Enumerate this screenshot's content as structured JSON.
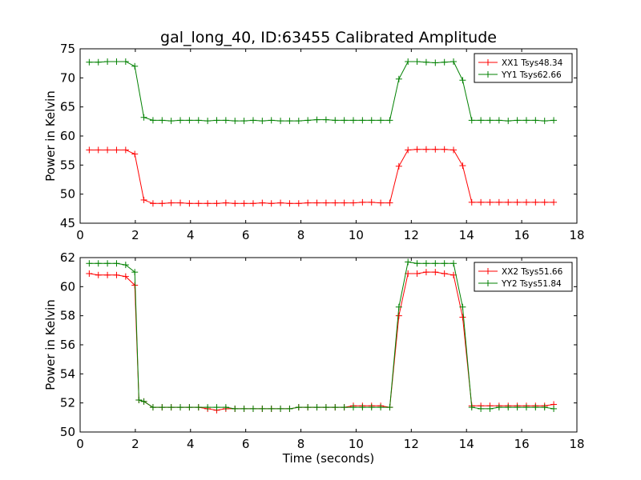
{
  "title": "gal_long_40, ID:63455 Calibrated Amplitude",
  "chart_data": [
    {
      "type": "line",
      "ylabel": "Power in Kelvin",
      "xlabel": "",
      "xlim": [
        0,
        18
      ],
      "ylim": [
        45,
        75
      ],
      "xticks": [
        "0",
        "2",
        "4",
        "6",
        "8",
        "10",
        "12",
        "14",
        "16",
        "18"
      ],
      "yticks": [
        "45",
        "50",
        "55",
        "60",
        "65",
        "70",
        "75"
      ],
      "grid": false,
      "legend_position": "top-right",
      "x": [
        0.33,
        0.66,
        0.99,
        1.32,
        1.65,
        1.98,
        2.31,
        2.64,
        2.97,
        3.3,
        3.63,
        3.96,
        4.29,
        4.62,
        4.95,
        5.28,
        5.61,
        5.94,
        6.27,
        6.6,
        6.93,
        7.26,
        7.59,
        7.92,
        8.25,
        8.58,
        8.91,
        9.24,
        9.57,
        9.9,
        10.23,
        10.56,
        10.89,
        11.22,
        11.55,
        11.88,
        12.21,
        12.54,
        12.87,
        13.2,
        13.53,
        13.86,
        14.19,
        14.52,
        14.85,
        15.18,
        15.51,
        15.84,
        16.17,
        16.5,
        16.83,
        17.16
      ],
      "series": [
        {
          "name": "XX1 Tsys48.34",
          "color": "#ff0000",
          "values": [
            57.6,
            57.6,
            57.6,
            57.6,
            57.6,
            56.9,
            49.0,
            48.4,
            48.4,
            48.5,
            48.5,
            48.4,
            48.4,
            48.4,
            48.4,
            48.5,
            48.4,
            48.4,
            48.4,
            48.5,
            48.4,
            48.5,
            48.4,
            48.4,
            48.5,
            48.5,
            48.5,
            48.5,
            48.5,
            48.5,
            48.6,
            48.6,
            48.5,
            48.5,
            54.8,
            57.6,
            57.7,
            57.7,
            57.7,
            57.7,
            57.6,
            54.9,
            48.6,
            48.6,
            48.6,
            48.6,
            48.6,
            48.6,
            48.6,
            48.6,
            48.6,
            48.6
          ]
        },
        {
          "name": "YY1 Tsys62.66",
          "color": "#008000",
          "values": [
            72.7,
            72.7,
            72.8,
            72.8,
            72.8,
            72.0,
            63.2,
            62.7,
            62.7,
            62.6,
            62.7,
            62.7,
            62.7,
            62.6,
            62.7,
            62.7,
            62.6,
            62.6,
            62.7,
            62.6,
            62.7,
            62.6,
            62.6,
            62.6,
            62.7,
            62.8,
            62.8,
            62.7,
            62.7,
            62.7,
            62.7,
            62.7,
            62.7,
            62.7,
            69.8,
            72.8,
            72.8,
            72.7,
            72.6,
            72.7,
            72.8,
            69.6,
            62.7,
            62.7,
            62.7,
            62.7,
            62.6,
            62.7,
            62.7,
            62.7,
            62.6,
            62.7
          ]
        }
      ]
    },
    {
      "type": "line",
      "ylabel": "Power in Kelvin",
      "xlabel": "Time (seconds)",
      "xlim": [
        0,
        18
      ],
      "ylim": [
        50,
        62
      ],
      "xticks": [
        "0",
        "2",
        "4",
        "6",
        "8",
        "10",
        "12",
        "14",
        "16",
        "18"
      ],
      "yticks": [
        "50",
        "52",
        "54",
        "56",
        "58",
        "60",
        "62"
      ],
      "grid": false,
      "legend_position": "top-right",
      "x": [
        0.33,
        0.66,
        0.99,
        1.32,
        1.65,
        1.98,
        2.13,
        2.31,
        2.64,
        2.97,
        3.3,
        3.63,
        3.96,
        4.29,
        4.62,
        4.95,
        5.28,
        5.61,
        5.94,
        6.27,
        6.6,
        6.93,
        7.26,
        7.59,
        7.92,
        8.25,
        8.58,
        8.91,
        9.24,
        9.57,
        9.9,
        10.23,
        10.56,
        10.89,
        11.22,
        11.55,
        11.88,
        12.21,
        12.54,
        12.87,
        13.2,
        13.53,
        13.86,
        14.19,
        14.52,
        14.85,
        15.18,
        15.51,
        15.84,
        16.17,
        16.5,
        16.83,
        17.16
      ],
      "series": [
        {
          "name": "XX2 Tsys51.66",
          "color": "#ff0000",
          "values": [
            60.9,
            60.8,
            60.8,
            60.8,
            60.7,
            60.1,
            52.2,
            52.1,
            51.7,
            51.7,
            51.7,
            51.7,
            51.7,
            51.7,
            51.6,
            51.5,
            51.6,
            51.6,
            51.6,
            51.6,
            51.6,
            51.6,
            51.6,
            51.6,
            51.7,
            51.7,
            51.7,
            51.7,
            51.7,
            51.7,
            51.8,
            51.8,
            51.8,
            51.8,
            51.7,
            58.0,
            60.9,
            60.9,
            61.0,
            61.0,
            60.9,
            60.8,
            57.9,
            51.8,
            51.8,
            51.8,
            51.8,
            51.8,
            51.8,
            51.8,
            51.8,
            51.8,
            51.9
          ]
        },
        {
          "name": "YY2 Tsys51.84",
          "color": "#008000",
          "values": [
            61.6,
            61.6,
            61.6,
            61.6,
            61.5,
            61.0,
            52.2,
            52.1,
            51.7,
            51.7,
            51.7,
            51.7,
            51.7,
            51.7,
            51.7,
            51.7,
            51.7,
            51.6,
            51.6,
            51.6,
            51.6,
            51.6,
            51.6,
            51.6,
            51.7,
            51.7,
            51.7,
            51.7,
            51.7,
            51.7,
            51.7,
            51.7,
            51.7,
            51.7,
            51.7,
            58.6,
            61.7,
            61.6,
            61.6,
            61.6,
            61.6,
            61.6,
            58.6,
            51.7,
            51.6,
            51.6,
            51.7,
            51.7,
            51.7,
            51.7,
            51.7,
            51.7,
            51.6
          ]
        }
      ]
    }
  ]
}
